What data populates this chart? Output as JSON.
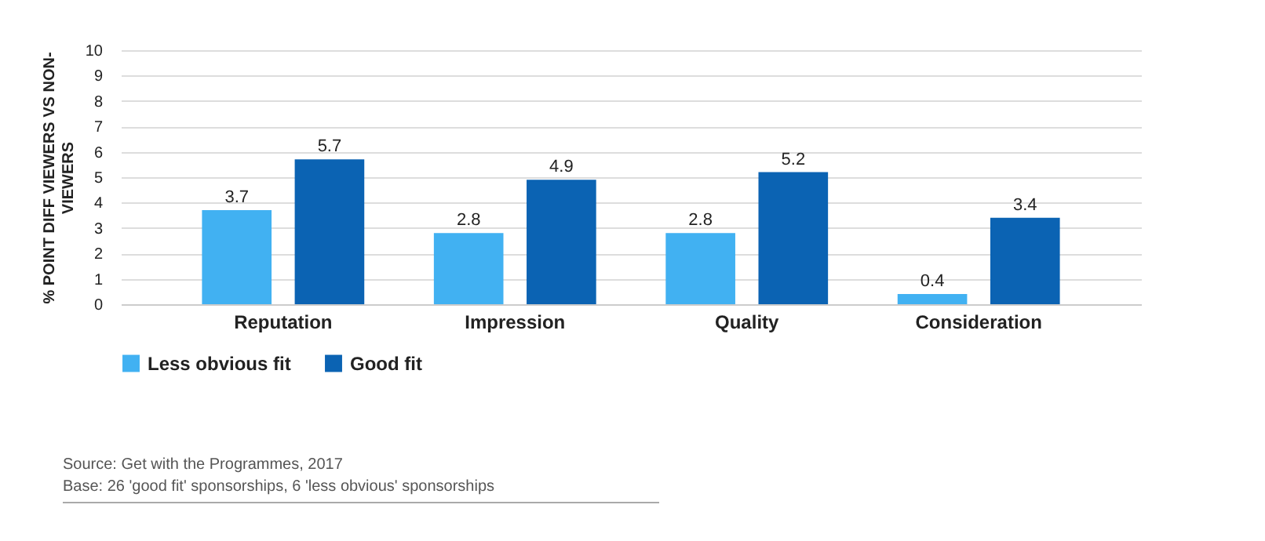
{
  "chart_data": {
    "type": "bar",
    "ylabel": "% POINT DIFF VIEWERS VS NON-VIEWERS",
    "categories": [
      "Reputation",
      "Impression",
      "Quality",
      "Consideration"
    ],
    "series": [
      {
        "name": "Less obvious fit",
        "color": "#41b1f2",
        "values": [
          3.7,
          2.8,
          2.8,
          0.4
        ]
      },
      {
        "name": "Good fit",
        "color": "#0b63b3",
        "values": [
          5.7,
          4.9,
          5.2,
          3.4
        ]
      }
    ],
    "ylim": [
      0,
      10
    ],
    "yticks": [
      0,
      1,
      2,
      3,
      4,
      5,
      6,
      7,
      8,
      9,
      10
    ],
    "grid": "y",
    "legend": "bottom",
    "data_labels": true,
    "annotations": [
      "Source: Get with the Programmes, 2017",
      "Base: 26 'good fit' sponsorships, 6 'less obvious' sponsorships"
    ]
  }
}
